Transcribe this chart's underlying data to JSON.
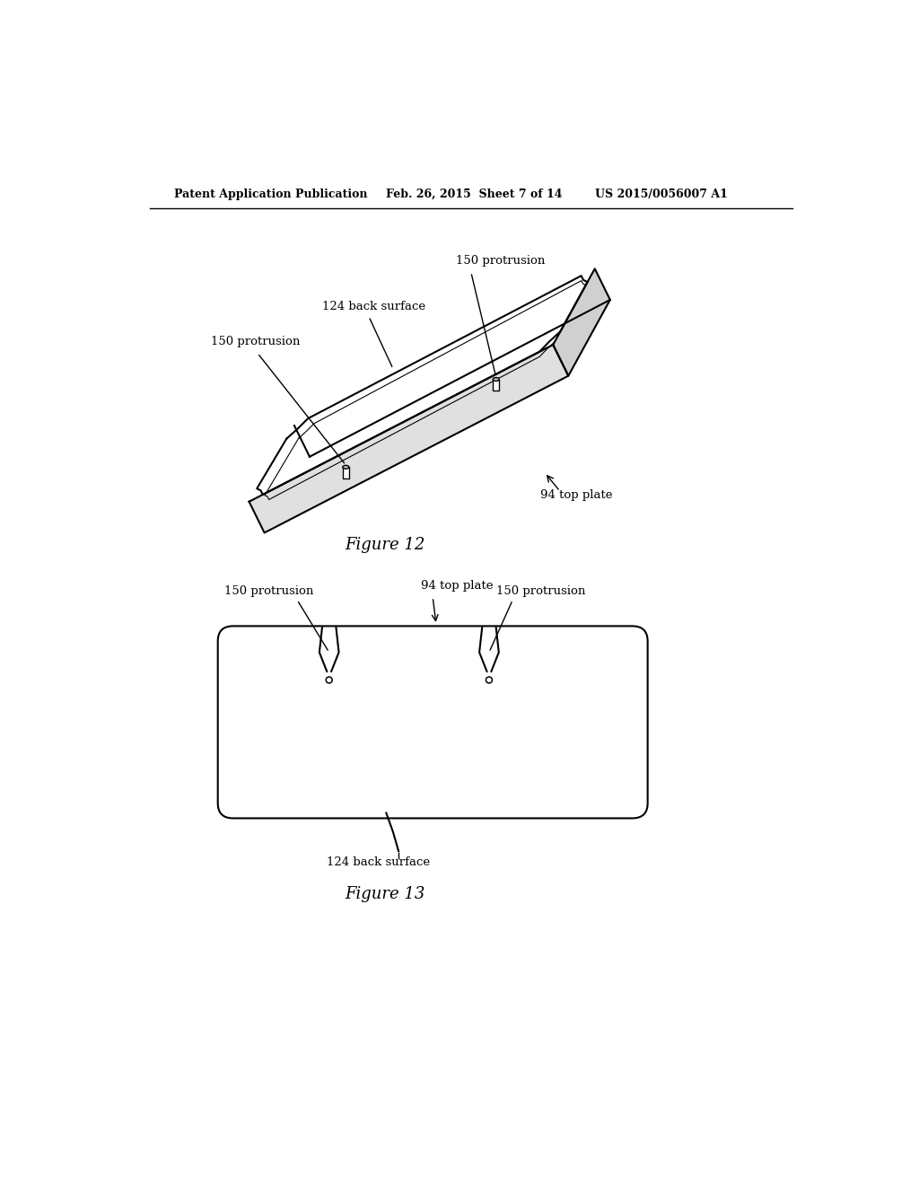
{
  "bg_color": "#ffffff",
  "header_left": "Patent Application Publication",
  "header_mid": "Feb. 26, 2015  Sheet 7 of 14",
  "header_right": "US 2015/0056007 A1",
  "fig12_caption": "Figure 12",
  "fig13_caption": "Figure 13",
  "label_150_protrusion": "150 protrusion",
  "label_124_back_surface": "124 back surface",
  "label_94_top_plate": "94 top plate"
}
